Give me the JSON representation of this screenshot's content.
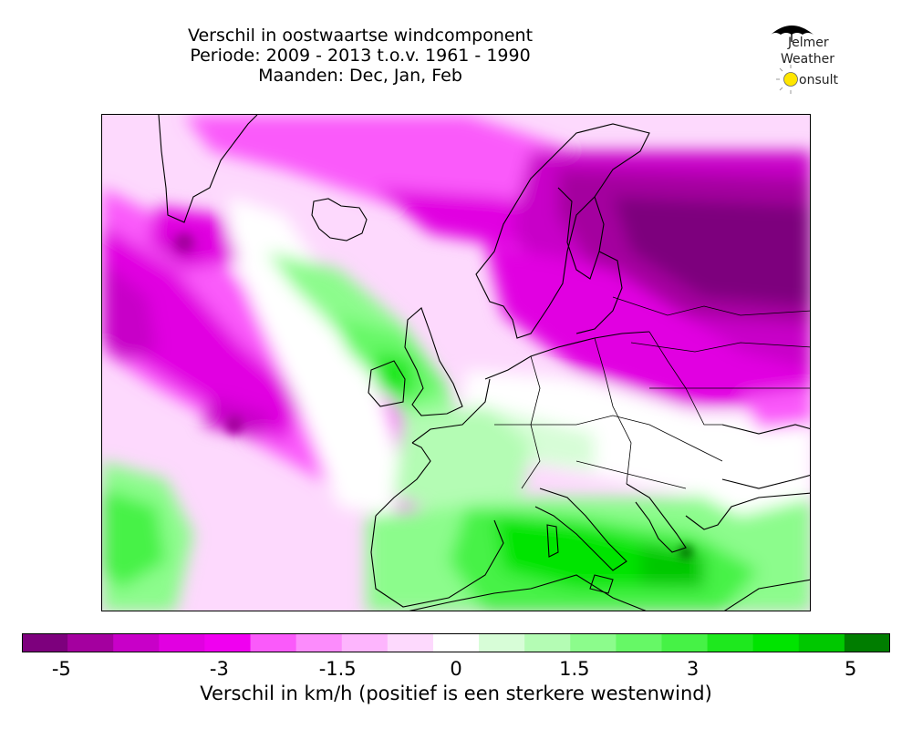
{
  "title": {
    "line1": "Verschil in oostwaartse windcomponent",
    "line2": "Periode: 2009 - 2013 t.o.v. 1961 - 1990",
    "line3": "Maanden: Dec, Jan, Feb"
  },
  "logo": {
    "line1": "Jelmer",
    "line2": "Weather",
    "line3_initial": "C",
    "line3_rest": "onsult"
  },
  "colorbar": {
    "label": "Verschil in km/h (positief is een sterkere westenwind)",
    "min": -5.5,
    "max": 5.5,
    "tick_labels": [
      "-5",
      "-3",
      "-1.5",
      "0",
      "1.5",
      "3",
      "5"
    ],
    "tick_values": [
      -5,
      -3,
      -1.5,
      0,
      1.5,
      3,
      5
    ],
    "colors": [
      "#7d007d",
      "#a4009f",
      "#c800c8",
      "#e100e1",
      "#f000f0",
      "#fa5afa",
      "#fc8cfc",
      "#fdb5fd",
      "#fdd9fd",
      "#ffffff",
      "#d7fdd7",
      "#b4fcb4",
      "#8cfc8c",
      "#66f866",
      "#46f246",
      "#1ee81e",
      "#00e400",
      "#00c800",
      "#007d00"
    ]
  }
}
